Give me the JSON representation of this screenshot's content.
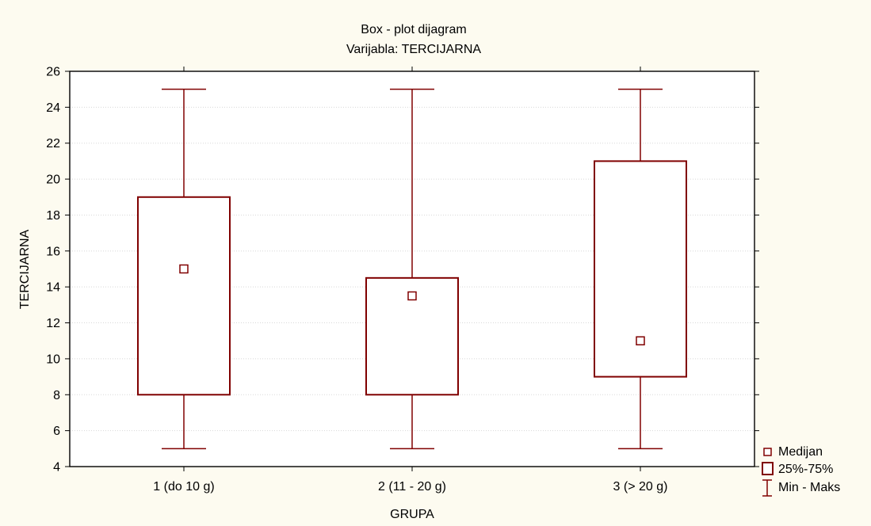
{
  "chart_data": {
    "type": "box",
    "title": "Box - plot dijagram",
    "subtitle": "Varijabla: TERCIJARNA",
    "xlabel": "GRUPA",
    "ylabel": "TERCIJARNA",
    "ylim": [
      4,
      26
    ],
    "yticks": [
      4,
      6,
      8,
      10,
      12,
      14,
      16,
      18,
      20,
      22,
      24,
      26
    ],
    "grid": true,
    "legend_position": "bottom-right, outside plot",
    "colors": {
      "background": "#fdfbf0",
      "plot_background": "#ffffff",
      "series": "#800000",
      "grid": "#d8d8d8"
    },
    "categories": [
      "1 (do 10 g)",
      "2 (11 - 20 g)",
      "3 (> 20 g)"
    ],
    "boxes": [
      {
        "category": "1 (do 10 g)",
        "min": 5,
        "q1": 8,
        "median": 15,
        "q3": 19,
        "max": 25
      },
      {
        "category": "2 (11 - 20 g)",
        "min": 5,
        "q1": 8,
        "median": 13.5,
        "q3": 14.5,
        "max": 25
      },
      {
        "category": "3 (> 20 g)",
        "min": 5,
        "q1": 9,
        "median": 11,
        "q3": 21,
        "max": 25
      }
    ],
    "legend": [
      {
        "marker": "small-square",
        "label": "Medijan"
      },
      {
        "marker": "box",
        "label": "25%-75%"
      },
      {
        "marker": "whisker",
        "label": "Min - Maks"
      }
    ]
  }
}
